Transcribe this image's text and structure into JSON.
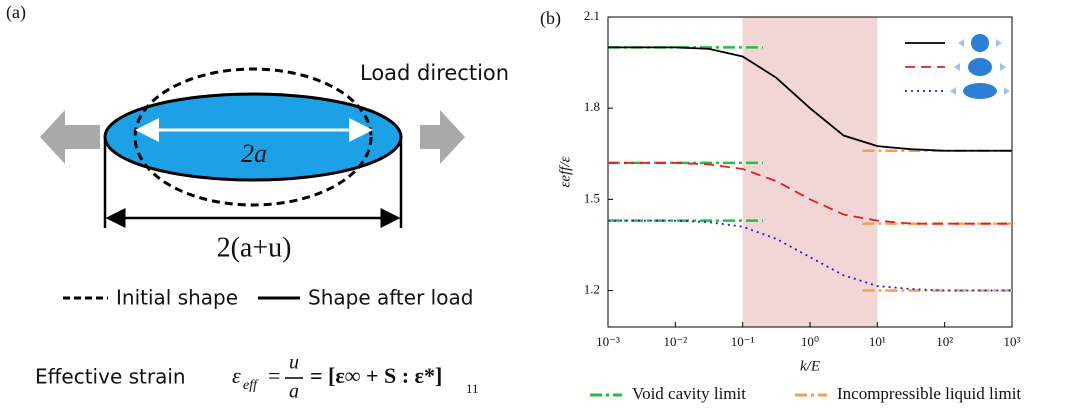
{
  "panel_a": {
    "label": "(a)",
    "load_direction": "Load direction",
    "inner_length": "2a",
    "outer_length": "2(a+u)",
    "legend": [
      "Initial shape",
      "Shape after load"
    ],
    "formula": {
      "caption": "Effective strain",
      "symbol": "ε",
      "subscript": "eff",
      "equals": "=",
      "numerator": "u",
      "denominator": "a",
      "bracket": "= [ε∞ + S : ε*]",
      "bracket_sub": "11"
    }
  },
  "chart_data": {
    "type": "line",
    "panel_label": "(b)",
    "xlabel": "k/E",
    "ylabel": "εeff/ε",
    "xscale": "log",
    "xlim": [
      0.001,
      1000
    ],
    "xticks": [
      {
        "value": 0.001,
        "label": "10⁻³"
      },
      {
        "value": 0.01,
        "label": "10⁻²"
      },
      {
        "value": 0.1,
        "label": "10⁻¹"
      },
      {
        "value": 1,
        "label": "10⁰"
      },
      {
        "value": 10,
        "label": "10¹"
      },
      {
        "value": 100,
        "label": "10²"
      },
      {
        "value": 1000,
        "label": "10³"
      }
    ],
    "ylim": [
      1.08,
      2.1
    ],
    "yticks": [
      2.1,
      1.8,
      1.5,
      1.2
    ],
    "shaded_region": [
      0.1,
      10
    ],
    "shade_color": "#f2d6d6",
    "x": [
      0.001,
      0.00316,
      0.01,
      0.0316,
      0.1,
      0.316,
      1,
      3.16,
      10,
      31.6,
      100,
      316,
      1000
    ],
    "series": [
      {
        "color": "#000000",
        "dash": "none",
        "values": [
          2.0,
          2.0,
          2.0,
          1.995,
          1.97,
          1.9,
          1.8,
          1.71,
          1.675,
          1.665,
          1.66,
          1.66,
          1.66
        ]
      },
      {
        "color": "#e02020",
        "dash": "10 6",
        "values": [
          1.62,
          1.62,
          1.62,
          1.615,
          1.6,
          1.56,
          1.5,
          1.45,
          1.43,
          1.42,
          1.42,
          1.42,
          1.42
        ]
      },
      {
        "color": "#2020e0",
        "dash": "2 4",
        "values": [
          1.43,
          1.43,
          1.43,
          1.425,
          1.41,
          1.37,
          1.31,
          1.25,
          1.215,
          1.205,
          1.2,
          1.2,
          1.2
        ]
      }
    ],
    "limits": [
      {
        "name": "Void cavity limit",
        "color": "#22c040",
        "dash": "12 4 3 4",
        "x": [
          0.001,
          0.2
        ],
        "levels": [
          2.0,
          1.62,
          1.43
        ]
      },
      {
        "name": "Incompressible liquid limit",
        "color": "#f4a050",
        "dash": "12 4 3 4",
        "x": [
          6,
          1000
        ],
        "levels": [
          1.66,
          1.42,
          1.2
        ]
      }
    ]
  }
}
